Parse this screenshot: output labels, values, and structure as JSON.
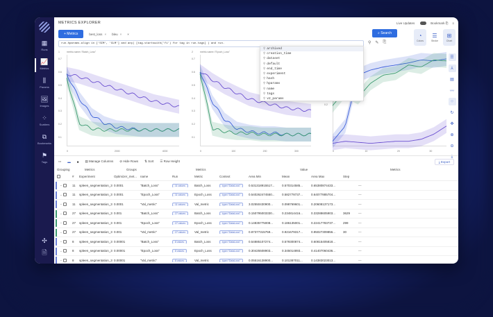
{
  "app": {
    "title": "METRICS EXPLORER",
    "live_updates_label": "Live Updates",
    "bookmark_label": "Bookmark"
  },
  "sidebar": {
    "items": [
      {
        "label": "Runs",
        "icon": "table-icon",
        "glyph": "▦"
      },
      {
        "label": "Metrics",
        "icon": "chart-icon",
        "glyph": "📈",
        "active": true
      },
      {
        "label": "Params",
        "icon": "params-icon",
        "glyph": "⫼"
      },
      {
        "label": "Images",
        "icon": "image-icon",
        "glyph": "🖼"
      },
      {
        "label": "Scatters",
        "icon": "scatter-icon",
        "glyph": "⁘"
      },
      {
        "label": "Bookmarks",
        "icon": "bookmark-icon",
        "glyph": "⧉"
      },
      {
        "label": "Tags",
        "icon": "flag-icon",
        "glyph": "⚑"
      }
    ],
    "bottom": [
      {
        "icon": "slack-icon",
        "glyph": "✣"
      },
      {
        "icon": "docs-icon",
        "glyph": "🗎"
      }
    ]
  },
  "toolbar": {
    "metrics_button": "+ Metrics",
    "tags": [
      {
        "label": "best_loss"
      },
      {
        "label": "bleu"
      }
    ],
    "search_button": "Search",
    "query": "run.hparams.align in ['SIM', 'GLM'] and any( [tag.startswith('fi') for tag in run.tags] ) and run.",
    "views": [
      {
        "label": "Colors",
        "glyph": "◔"
      },
      {
        "label": "Stroke",
        "glyph": "☰"
      },
      {
        "label": "Chart",
        "glyph": "⊞"
      }
    ]
  },
  "autocomplete": {
    "items": [
      "archived",
      "creation_time",
      "dataset",
      "default",
      "end_time",
      "experiment",
      "hash",
      "hparams",
      "name",
      "tags",
      "v2_params"
    ]
  },
  "chart_data": [
    {
      "type": "line",
      "title": "metric.name=\"Batch_Loss\"",
      "index": "1",
      "yticks": [
        "0.7",
        "0.6",
        "0.5",
        "0.4",
        "0.3",
        "0.2",
        "0.1"
      ],
      "xticks": [
        "0",
        "2000",
        "4000"
      ],
      "series": [
        {
          "name": "purple",
          "color": "#6a4fd0",
          "values": [
            0.58,
            0.56,
            0.53,
            0.5,
            0.47,
            0.44,
            0.41,
            0.38,
            0.36,
            0.34
          ]
        },
        {
          "name": "blue",
          "color": "#3b5fd9",
          "values": [
            0.58,
            0.4,
            0.28,
            0.22,
            0.19,
            0.18,
            0.17,
            0.17,
            0.17,
            0.17
          ]
        },
        {
          "name": "green",
          "color": "#3c9a70",
          "values": [
            0.55,
            0.22,
            0.18,
            0.17,
            0.17,
            0.17,
            0.17,
            0.17,
            0.17,
            0.17
          ]
        }
      ],
      "ylim": [
        0.05,
        0.72
      ]
    },
    {
      "type": "line",
      "title": "metric.name=\"Epoch_Loss\"",
      "index": "2",
      "yticks": [
        "0.7",
        "0.6",
        "0.5",
        "0.4",
        "0.3",
        "0.2",
        "0.1"
      ],
      "xticks": [
        "0",
        "100",
        "200",
        "300"
      ],
      "series": [
        {
          "name": "purple",
          "color": "#6a4fd0",
          "values": [
            0.61,
            0.55,
            0.5,
            0.46,
            0.42,
            0.4,
            0.38,
            0.36,
            0.35,
            0.34
          ]
        },
        {
          "name": "blue",
          "color": "#3b5fd9",
          "values": [
            0.61,
            0.4,
            0.28,
            0.22,
            0.2,
            0.19,
            0.19,
            0.18,
            0.18,
            0.18
          ]
        },
        {
          "name": "green",
          "color": "#3c9a70",
          "values": [
            0.6,
            0.22,
            0.2,
            0.19,
            0.19,
            0.18,
            0.18,
            0.18,
            0.18,
            0.18
          ]
        }
      ],
      "ylim": [
        0.1,
        0.72
      ]
    },
    {
      "type": "line",
      "title": "metric.name=\"Val_metric\"",
      "index": "3",
      "yticks": [
        "0.4",
        "0.2"
      ],
      "xticks": [
        "0",
        "10",
        "20",
        "30"
      ],
      "series": [
        {
          "name": "purple",
          "color": "#6a4fd0",
          "values": [
            0.03,
            0.05,
            0.04,
            0.03,
            0.04,
            0.05,
            0.05,
            0.07,
            0.12,
            0.2
          ]
        },
        {
          "name": "blue",
          "color": "#3b5fd9",
          "values": [
            0.05,
            0.2,
            0.7,
            0.75,
            0.78,
            0.8,
            0.82,
            0.85,
            0.84,
            0.86
          ]
        },
        {
          "name": "green",
          "color": "#3c9a70",
          "values": [
            0.4,
            0.55,
            0.48,
            0.62,
            0.7,
            0.72,
            0.8,
            0.78,
            0.85,
            0.84
          ]
        }
      ],
      "ylim": [
        0,
        0.9
      ]
    }
  ],
  "chart_tools": [
    "legend-icon",
    "axes-icon",
    "table-icon",
    "smoothing-icon",
    "scatter-icon",
    "zoom-reset-icon",
    "move-icon",
    "zoom-in-icon",
    "zoom-out-icon",
    "download-icon"
  ],
  "table_toolbar": {
    "manage_columns": "Manage Columns",
    "hide_rows": "Hide Rows",
    "sort": "Sort",
    "row_height": "Row Height",
    "export": "Export"
  },
  "table": {
    "group_headers": [
      "Grouping",
      "Metrics",
      "Groups",
      "Metrics",
      "Value",
      "Metrics"
    ],
    "columns": [
      "#",
      "Experiment",
      "Optimizer_met...",
      "name",
      "Run",
      "Metric",
      "Context",
      "Area Min",
      "Mean",
      "Area Max",
      "Step"
    ],
    "rows": [
      {
        "bar": "#6a7fd8",
        "num": "11",
        "exp": "spleen_segmentation_3d",
        "opt": "0.0001",
        "name": "\"Batch_Loss\"",
        "run": "11 values",
        "metric": "Batch_Loss",
        "ctx": "type=\"DataLoss\"",
        "amin": "0.531318915517...",
        "mean": "0.570314585...",
        "amax": "0.65380874433...",
        "step": ""
      },
      {
        "bar": "#6a7fd8",
        "num": "11",
        "exp": "spleen_segmentation_3d",
        "opt": "0.0001",
        "name": "\"Epoch_Loss\"",
        "run": "11 values",
        "metric": "Epoch_Loss",
        "ctx": "type=\"DataLoss\"",
        "amin": "0.540262474550...",
        "mean": "0.582778737...",
        "amax": "0.64077885704...",
        "step": ""
      },
      {
        "bar": "#6a7fd8",
        "num": "11",
        "exp": "spleen_segmentation_3d",
        "opt": "0.0001",
        "name": "\"Val_metric\"",
        "run": "11 values",
        "metric": "Val_metric",
        "ctx": "type=\"DataLoss\"",
        "amin": "3.02550430900...",
        "mean": "0.098769601...",
        "amax": "0.20608137173...",
        "step": ""
      },
      {
        "bar": "#3c9a70",
        "num": "27",
        "exp": "spleen_segmentation_3d",
        "opt": "0.001",
        "name": "\"Batch_Loss\"",
        "run": "27 values",
        "metric": "Batch_Loss",
        "ctx": "type=\"DataLoss\"",
        "amin": "0.150795003330...",
        "mean": "0.234814416...",
        "amax": "0.33288605903...",
        "step": "3629"
      },
      {
        "bar": "#3c9a70",
        "num": "27",
        "exp": "spleen_segmentation_3d",
        "opt": "0.001",
        "name": "\"Epoch_Loss\"",
        "run": "27 values",
        "metric": "Epoch_Loss",
        "ctx": "type=\"DataLoss\"",
        "amin": "0.14835775008...",
        "mean": "0.186135001...",
        "amax": "0.22417783737...",
        "step": "299"
      },
      {
        "bar": "#3c9a70",
        "num": "27",
        "exp": "spleen_segmentation_3d",
        "opt": "0.001",
        "name": "\"Val_metric\"",
        "run": "27 values",
        "metric": "Val_metric",
        "ctx": "type=\"DataLoss\"",
        "amin": "0.87377315759...",
        "mean": "0.921679317...",
        "amax": "0.95027309856...",
        "step": "30"
      },
      {
        "bar": "#6a7fd8",
        "num": "8",
        "exp": "spleen_segmentation_3d",
        "opt": "0.00001",
        "name": "\"Batch_Loss\"",
        "run": "8 values",
        "metric": "Batch_Loss",
        "ctx": "type=\"DataLoss\"",
        "amin": "0.54885107274...",
        "mean": "0.579300874...",
        "amax": "0.60815405818...",
        "step": ""
      },
      {
        "bar": "#6a7fd8",
        "num": "8",
        "exp": "spleen_segmentation_3d",
        "opt": "0.00001",
        "name": "\"Epoch_Loss\"",
        "run": "8 values",
        "metric": "Epoch_Loss",
        "ctx": "type=\"DataLoss\"",
        "amin": "0.30425508903...",
        "mean": "0.345014893...",
        "amax": "0.41407060436...",
        "step": ""
      },
      {
        "bar": "#6a7fd8",
        "num": "8",
        "exp": "spleen_segmentation_3d",
        "opt": "0.00001",
        "name": "\"Val_metric\"",
        "run": "8 values",
        "metric": "Val_metric",
        "ctx": "type=\"DataLoss\"",
        "amin": "0.05516138900...",
        "mean": "0.101387011...",
        "amax": "0.14383023013...",
        "step": ""
      }
    ]
  }
}
